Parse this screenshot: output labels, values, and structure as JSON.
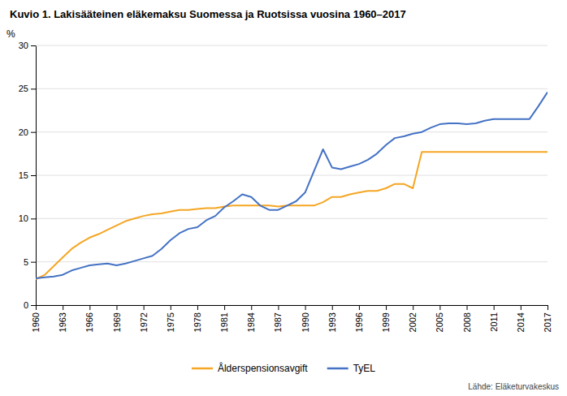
{
  "chart_data": {
    "type": "line",
    "title": "Kuvio 1. Lakisääteinen eläkemaksu Suomessa ja Ruotsissa vuosina 1960–2017",
    "ylabel": "%",
    "annotations": [
      "Lähde: Eläketurvakeskus"
    ],
    "x": [
      1960,
      1961,
      1962,
      1963,
      1964,
      1965,
      1966,
      1967,
      1968,
      1969,
      1970,
      1971,
      1972,
      1973,
      1974,
      1975,
      1976,
      1977,
      1978,
      1979,
      1980,
      1981,
      1982,
      1983,
      1984,
      1985,
      1986,
      1987,
      1988,
      1989,
      1990,
      1991,
      1992,
      1993,
      1994,
      1995,
      1996,
      1997,
      1998,
      1999,
      2000,
      2001,
      2002,
      2003,
      2004,
      2005,
      2006,
      2007,
      2008,
      2009,
      2010,
      2011,
      2012,
      2013,
      2014,
      2015,
      2016,
      2017
    ],
    "series": [
      {
        "name": "Ålderspensionsavgift",
        "color": "#f5a623",
        "values": [
          3.0,
          3.5,
          4.5,
          5.5,
          6.5,
          7.2,
          7.8,
          8.2,
          8.7,
          9.2,
          9.7,
          10.0,
          10.3,
          10.5,
          10.6,
          10.8,
          11.0,
          11.0,
          11.1,
          11.2,
          11.2,
          11.4,
          11.5,
          11.5,
          11.5,
          11.5,
          11.5,
          11.4,
          11.5,
          11.5,
          11.5,
          11.5,
          11.9,
          12.5,
          12.5,
          12.8,
          13.0,
          13.2,
          13.2,
          13.5,
          14.0,
          14.0,
          13.5,
          17.7,
          17.7,
          17.7,
          17.7,
          17.7,
          17.7,
          17.7,
          17.7,
          17.7,
          17.7,
          17.7,
          17.7,
          17.7,
          17.7,
          17.7
        ]
      },
      {
        "name": "TyEL",
        "color": "#4472c4",
        "values": [
          3.1,
          3.2,
          3.3,
          3.5,
          4.0,
          4.3,
          4.6,
          4.7,
          4.8,
          4.6,
          4.8,
          5.1,
          5.4,
          5.7,
          6.5,
          7.5,
          8.3,
          8.8,
          9.0,
          9.8,
          10.3,
          11.3,
          12.0,
          12.8,
          12.5,
          11.5,
          11.0,
          11.0,
          11.5,
          12.0,
          13.0,
          15.5,
          18.0,
          15.9,
          15.7,
          16.0,
          16.3,
          16.8,
          17.5,
          18.5,
          19.3,
          19.5,
          19.8,
          20.0,
          20.5,
          20.9,
          21.0,
          21.0,
          20.9,
          21.0,
          21.3,
          21.5,
          21.5,
          21.5,
          21.5,
          21.5,
          23.0,
          24.6
        ]
      }
    ],
    "xlim": [
      1960,
      2017
    ],
    "xticks": [
      1960,
      1963,
      1966,
      1969,
      1972,
      1975,
      1978,
      1981,
      1984,
      1987,
      1990,
      1993,
      1996,
      1999,
      2002,
      2005,
      2008,
      2011,
      2014,
      2017
    ],
    "ylim": [
      0,
      30
    ],
    "yticks": [
      0,
      5,
      10,
      15,
      20,
      25,
      30
    ],
    "grid": true,
    "legend": "bottom"
  }
}
